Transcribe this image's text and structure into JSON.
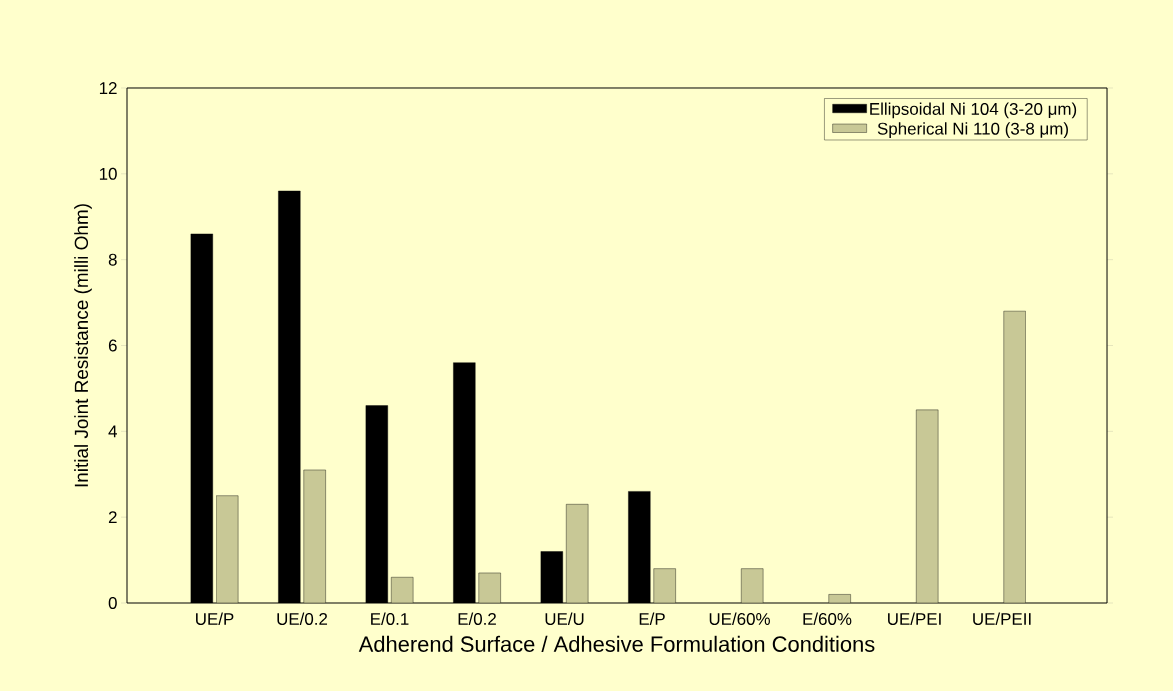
{
  "chart_data": {
    "type": "bar",
    "xlabel": "Adherend Surface / Adhesive Formulation Conditions",
    "ylabel": "Initial Joint Resistance (milli Ohm)",
    "categories": [
      "UE/P",
      "UE/0.2",
      "E/0.1",
      "E/0.2",
      "UE/U",
      "E/P",
      "UE/60%",
      "E/60%",
      "UE/PEI",
      "UE/PEII"
    ],
    "series": [
      {
        "name": "Ellipsoidal Ni 104 (3-20 μm)",
        "color": "#000000",
        "values": [
          8.6,
          9.6,
          4.6,
          5.6,
          1.2,
          2.6,
          null,
          null,
          null,
          null
        ]
      },
      {
        "name": "Spherical Ni 110 (3-8 μm)",
        "color": "#c8c896",
        "values": [
          2.5,
          3.1,
          0.6,
          0.7,
          2.3,
          0.8,
          0.8,
          0.2,
          4.5,
          6.8
        ]
      }
    ],
    "ylim": [
      0,
      12
    ],
    "yticks": [
      0,
      2,
      4,
      6,
      8,
      10,
      12
    ],
    "legend": "top right"
  }
}
